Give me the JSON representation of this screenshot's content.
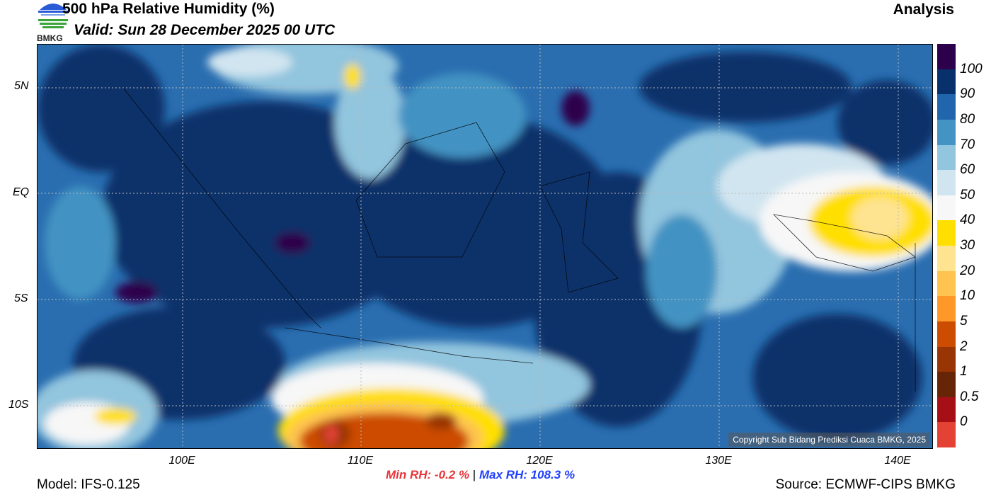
{
  "header": {
    "title": "500 hPa Relative Humidity (%)",
    "valid": "Valid: Sun 28 December 2025 00 UTC",
    "product": "Analysis",
    "logo_text": "BMKG"
  },
  "axes": {
    "lat_labels": [
      "5N",
      "EQ",
      "5S",
      "10S"
    ],
    "lon_labels": [
      "100E",
      "110E",
      "120E",
      "130E",
      "140E"
    ]
  },
  "colorbar": {
    "colors": [
      "#2d004b",
      "#08306b",
      "#2166ac",
      "#4393c3",
      "#92c5de",
      "#d1e5f0",
      "#f7f7f7",
      "#ffdf00",
      "#fee391",
      "#fec44f",
      "#fe9929",
      "#cc4c02",
      "#993404",
      "#662506",
      "#a50f15",
      "#e34234"
    ],
    "labels": [
      "100",
      "90",
      "80",
      "70",
      "60",
      "50",
      "40",
      "30",
      "20",
      "10",
      "5",
      "2",
      "1",
      "0.5",
      "0"
    ]
  },
  "copyright": "Copyright Sub Bidang Prediksi Cuaca BMKG, 2025",
  "stats": {
    "min": "Min RH:  -0.2 %",
    "sep": "|",
    "max": "Max RH: 108.3 %",
    "min_color": "#e8333a",
    "max_color": "#1f3fff"
  },
  "footer": {
    "model": "Model: IFS-0.125",
    "source": "Source: ECMWF-CIPS BMKG"
  }
}
